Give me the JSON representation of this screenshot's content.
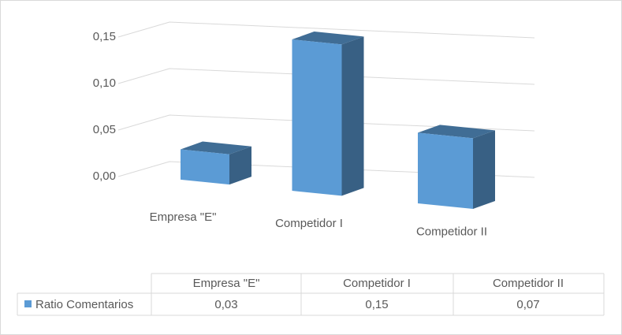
{
  "chart_data": {
    "type": "bar",
    "categories": [
      "Empresa \"E\"",
      "Competidor I",
      "Competidor II"
    ],
    "series": [
      {
        "name": "Ratio Comentarios",
        "color": "#5b9bd5",
        "values": [
          0.03,
          0.15,
          0.07
        ],
        "value_labels": [
          "0,03",
          "0,15",
          "0,07"
        ]
      }
    ],
    "ylim": [
      0,
      0.15
    ],
    "yticks": [
      {
        "value": 0,
        "label": "0,00"
      },
      {
        "value": 0.05,
        "label": "0,05"
      },
      {
        "value": 0.1,
        "label": "0,10"
      },
      {
        "value": 0.15,
        "label": "0,15"
      }
    ],
    "grid": true
  }
}
